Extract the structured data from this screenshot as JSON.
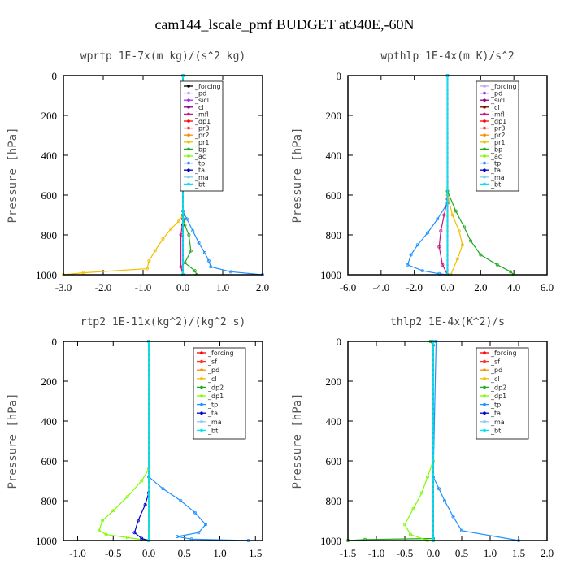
{
  "title": "cam144_lscale_pmf  BUDGET at340E,-60N",
  "chart_data": [
    {
      "type": "line",
      "title": "wprtp   1E-7x(m kg)/(s^2 kg)",
      "xlabel": "",
      "ylabel": "Pressure [hPa]",
      "xlim": [
        -3.0,
        2.0
      ],
      "ylim": [
        1000,
        0
      ],
      "xticks": [
        "-3.0",
        "-2.0",
        "-1.0",
        "0.0",
        "1.0",
        "2.0"
      ],
      "yticks": [
        "0",
        "200",
        "400",
        "600",
        "800",
        "1000"
      ],
      "series": [
        {
          "name": "_forcing",
          "color": "#000000",
          "x": [
            0.0,
            0.0,
            0.0,
            0.0,
            0.0
          ],
          "y": [
            0,
            250,
            500,
            750,
            1000
          ]
        },
        {
          "name": "_pd",
          "color": "#c8a2e8",
          "x": [
            0.0,
            0.0
          ],
          "y": [
            0,
            1000
          ]
        },
        {
          "name": "_sicl",
          "color": "#9b30ff",
          "x": [
            0.0,
            0.0
          ],
          "y": [
            0,
            1000
          ]
        },
        {
          "name": "_cl",
          "color": "#8b008b",
          "x": [
            0.0,
            0.0
          ],
          "y": [
            0,
            1000
          ]
        },
        {
          "name": "_mfl",
          "color": "#c71585",
          "x": [
            0.0,
            0.0,
            -0.05,
            -0.05,
            0.0
          ],
          "y": [
            0,
            720,
            800,
            960,
            1000
          ]
        },
        {
          "name": "_dp1",
          "color": "#ff0000",
          "x": [
            0.0,
            0.0
          ],
          "y": [
            0,
            1000
          ]
        },
        {
          "name": "_pr3",
          "color": "#ff3030",
          "x": [
            0.0,
            0.0
          ],
          "y": [
            0,
            1000
          ]
        },
        {
          "name": "_pr2",
          "color": "#ff8c00",
          "x": [
            0.0,
            0.0
          ],
          "y": [
            0,
            1000
          ]
        },
        {
          "name": "_pr1",
          "color": "#f0c000",
          "x": [
            0.0,
            0.0,
            -0.1,
            -0.3,
            -0.5,
            -0.7,
            -0.85,
            -0.9,
            -2.5,
            -3.0
          ],
          "y": [
            0,
            700,
            730,
            770,
            820,
            880,
            930,
            970,
            990,
            1000
          ]
        },
        {
          "name": "_bp",
          "color": "#22aa22",
          "x": [
            0.0,
            0.0,
            0.05,
            0.15,
            0.2,
            0.05,
            0.3,
            0.35
          ],
          "y": [
            0,
            700,
            750,
            800,
            880,
            940,
            980,
            1000
          ]
        },
        {
          "name": "_ac",
          "color": "#7cfc00",
          "x": [
            0.0,
            0.0
          ],
          "y": [
            0,
            1000
          ]
        },
        {
          "name": "_tp",
          "color": "#1e90ff",
          "x": [
            0.0,
            0.0,
            0.1,
            0.25,
            0.4,
            0.55,
            0.65,
            0.7,
            1.2,
            2.0
          ],
          "y": [
            0,
            680,
            720,
            780,
            840,
            890,
            930,
            960,
            985,
            1000
          ]
        },
        {
          "name": "_ta",
          "color": "#0000cd",
          "x": [
            0.0,
            0.0
          ],
          "y": [
            0,
            1000
          ]
        },
        {
          "name": "_ma",
          "color": "#87ceeb",
          "x": [
            0.0,
            0.0
          ],
          "y": [
            0,
            1000
          ]
        },
        {
          "name": "_bt",
          "color": "#00e5ee",
          "x": [
            0.0,
            0.0
          ],
          "y": [
            0,
            1000
          ]
        }
      ]
    },
    {
      "type": "line",
      "title": "wpthlp   1E-4x(m K)/s^2",
      "xlabel": "",
      "ylabel": "Pressure [hPa]",
      "xlim": [
        -6.0,
        6.0
      ],
      "ylim": [
        1000,
        0
      ],
      "xticks": [
        "-6.0",
        "-4.0",
        "-2.0",
        "0.0",
        "2.0",
        "4.0",
        "6.0"
      ],
      "yticks": [
        "0",
        "200",
        "400",
        "600",
        "800",
        "1000"
      ],
      "series": [
        {
          "name": "_forcing",
          "color": "#c8a2e8",
          "x": [
            0.0,
            0.0
          ],
          "y": [
            0,
            1000
          ]
        },
        {
          "name": "_pd",
          "color": "#9b30ff",
          "x": [
            0.0,
            0.0
          ],
          "y": [
            0,
            1000
          ]
        },
        {
          "name": "_sicl",
          "color": "#8b008b",
          "x": [
            0.0,
            0.0
          ],
          "y": [
            0,
            1000
          ]
        },
        {
          "name": "_cl",
          "color": "#800000",
          "x": [
            0.0,
            0.0
          ],
          "y": [
            0,
            1000
          ]
        },
        {
          "name": "_mfl",
          "color": "#c71585",
          "x": [
            0.0,
            0.0,
            -0.2,
            -0.4,
            -0.5,
            -0.3,
            0.0
          ],
          "y": [
            0,
            620,
            700,
            780,
            860,
            950,
            1000
          ]
        },
        {
          "name": "_dp1",
          "color": "#ff0000",
          "x": [
            0.0,
            0.0
          ],
          "y": [
            0,
            1000
          ]
        },
        {
          "name": "_pr3",
          "color": "#ff3030",
          "x": [
            0.0,
            0.0
          ],
          "y": [
            0,
            1000
          ]
        },
        {
          "name": "_pr2",
          "color": "#ff8c00",
          "x": [
            0.0,
            0.0
          ],
          "y": [
            0,
            1000
          ]
        },
        {
          "name": "_pr1",
          "color": "#f0c000",
          "x": [
            0.0,
            0.0,
            0.3,
            0.7,
            0.9,
            0.6,
            0.2
          ],
          "y": [
            0,
            600,
            700,
            780,
            850,
            920,
            1000
          ]
        },
        {
          "name": "_bp",
          "color": "#22aa22",
          "x": [
            0.0,
            0.0,
            0.5,
            1.0,
            1.4,
            2.0,
            3.0,
            3.8,
            4.0
          ],
          "y": [
            0,
            580,
            680,
            760,
            830,
            900,
            950,
            985,
            1000
          ]
        },
        {
          "name": "_ac",
          "color": "#7cfc00",
          "x": [
            0.0,
            0.0
          ],
          "y": [
            0,
            1000
          ]
        },
        {
          "name": "_tp",
          "color": "#1e90ff",
          "x": [
            0.0,
            0.0,
            -0.6,
            -1.2,
            -1.8,
            -2.2,
            -2.4,
            -1.5,
            -0.5,
            0.0
          ],
          "y": [
            0,
            640,
            720,
            790,
            850,
            900,
            950,
            980,
            995,
            1000
          ]
        },
        {
          "name": "_ta",
          "color": "#0000cd",
          "x": [
            0.0,
            0.0
          ],
          "y": [
            0,
            1000
          ]
        },
        {
          "name": "_ma",
          "color": "#87ceeb",
          "x": [
            0.0,
            0.0
          ],
          "y": [
            0,
            1000
          ]
        },
        {
          "name": "_bt",
          "color": "#00e5ee",
          "x": [
            0.0,
            0.0
          ],
          "y": [
            0,
            1000
          ]
        }
      ]
    },
    {
      "type": "line",
      "title": "rtp2   1E-11x(kg^2)/(kg^2 s)",
      "xlabel": "",
      "ylabel": "Pressure [hPa]",
      "xlim": [
        -1.2,
        1.6
      ],
      "ylim": [
        1000,
        0
      ],
      "xticks": [
        "-1.0",
        "-0.5",
        "0.0",
        "0.5",
        "1.0",
        "1.5"
      ],
      "xtick_values": [
        -1.0,
        -0.5,
        0.0,
        0.5,
        1.0,
        1.5
      ],
      "yticks": [
        "0",
        "200",
        "400",
        "600",
        "800",
        "1000"
      ],
      "series": [
        {
          "name": "_forcing",
          "color": "#ff0000",
          "x": [
            0.0,
            0.0
          ],
          "y": [
            0,
            1000
          ]
        },
        {
          "name": "_sf",
          "color": "#ff3030",
          "x": [
            0.0,
            0.0
          ],
          "y": [
            0,
            1000
          ]
        },
        {
          "name": "_pd",
          "color": "#ff8c00",
          "x": [
            0.0,
            0.0
          ],
          "y": [
            0,
            1000
          ]
        },
        {
          "name": "_cl",
          "color": "#f0c000",
          "x": [
            0.0,
            0.0
          ],
          "y": [
            0,
            1000
          ]
        },
        {
          "name": "_dp2",
          "color": "#22aa22",
          "x": [
            0.0,
            0.0
          ],
          "y": [
            0,
            1000
          ]
        },
        {
          "name": "_dp1",
          "color": "#7cfc00",
          "x": [
            0.0,
            0.0,
            -0.1,
            -0.3,
            -0.5,
            -0.65,
            -0.7,
            -0.6,
            -0.3,
            0.0
          ],
          "y": [
            0,
            640,
            700,
            780,
            850,
            900,
            950,
            970,
            985,
            1000
          ]
        },
        {
          "name": "_tp",
          "color": "#1e90ff",
          "x": [
            0.0,
            0.0,
            0.2,
            0.45,
            0.65,
            0.8,
            0.7,
            0.4,
            0.6,
            1.4
          ],
          "y": [
            0,
            680,
            740,
            800,
            860,
            920,
            960,
            980,
            993,
            1000
          ]
        },
        {
          "name": "_ta",
          "color": "#0000cd",
          "x": [
            0.0,
            0.0,
            -0.05,
            -0.15,
            -0.2,
            -0.1,
            0.0
          ],
          "y": [
            0,
            760,
            820,
            900,
            960,
            990,
            1000
          ]
        },
        {
          "name": "_ma",
          "color": "#87ceeb",
          "x": [
            0.0,
            0.0
          ],
          "y": [
            0,
            1000
          ]
        },
        {
          "name": "_bt",
          "color": "#00e5ee",
          "x": [
            0.0,
            0.0
          ],
          "y": [
            0,
            1000
          ]
        }
      ]
    },
    {
      "type": "line",
      "title": "thlp2   1E-4x(K^2)/s",
      "xlabel": "",
      "ylabel": "Pressure [hPa]",
      "xlim": [
        -1.5,
        2.0
      ],
      "ylim": [
        1000,
        0
      ],
      "xticks": [
        "-1.5",
        "-1.0",
        "-0.5",
        "0.0",
        "0.5",
        "1.0",
        "1.5",
        "2.0"
      ],
      "yticks": [
        "0",
        "200",
        "400",
        "600",
        "800",
        "1000"
      ],
      "series": [
        {
          "name": "_forcing",
          "color": "#ff0000",
          "x": [
            0.0,
            0.0
          ],
          "y": [
            0,
            1000
          ]
        },
        {
          "name": "_sf",
          "color": "#ff3030",
          "x": [
            0.0,
            0.0
          ],
          "y": [
            0,
            1000
          ]
        },
        {
          "name": "_pd",
          "color": "#ff8c00",
          "x": [
            0.0,
            0.0
          ],
          "y": [
            0,
            1000
          ]
        },
        {
          "name": "_cl",
          "color": "#f0c000",
          "x": [
            0.0,
            0.0
          ],
          "y": [
            0,
            1000
          ]
        },
        {
          "name": "_dp2",
          "color": "#22aa22",
          "x": [
            -0.05,
            0.0,
            0.0,
            -1.2,
            -1.5
          ],
          "y": [
            0,
            20,
            990,
            995,
            1000
          ]
        },
        {
          "name": "_dp1",
          "color": "#7cfc00",
          "x": [
            0.0,
            0.0,
            -0.1,
            -0.2,
            -0.35,
            -0.5,
            -0.4,
            -0.1
          ],
          "y": [
            0,
            600,
            680,
            760,
            840,
            920,
            970,
            1000
          ]
        },
        {
          "name": "_tp",
          "color": "#1e90ff",
          "x": [
            0.05,
            0.0,
            0.1,
            0.2,
            0.35,
            0.5,
            1.5
          ],
          "y": [
            0,
            680,
            740,
            800,
            880,
            950,
            1000
          ]
        },
        {
          "name": "_ta",
          "color": "#0000cd",
          "x": [
            0.0,
            0.0
          ],
          "y": [
            0,
            1000
          ]
        },
        {
          "name": "_ma",
          "color": "#87ceeb",
          "x": [
            0.0,
            0.0
          ],
          "y": [
            0,
            1000
          ]
        },
        {
          "name": "_bt",
          "color": "#00e5ee",
          "x": [
            0.0,
            0.0
          ],
          "y": [
            0,
            1000
          ]
        }
      ]
    }
  ]
}
